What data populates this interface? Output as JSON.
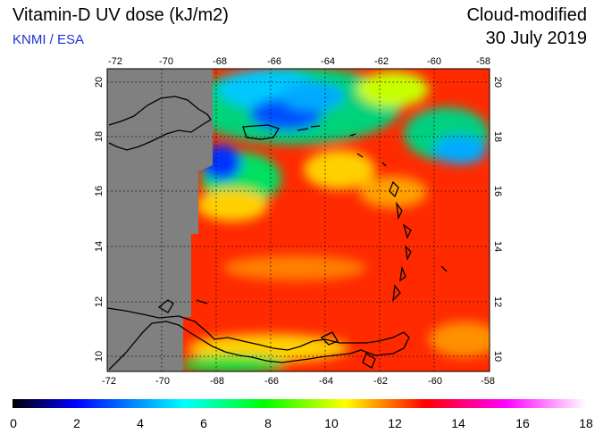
{
  "header": {
    "title": "Vitamin-D UV dose (kJ/m2)",
    "organization": "KNMI / ESA",
    "mode": "Cloud-modified",
    "date": "30 July 2019"
  },
  "map": {
    "lon_ticks": [
      "-72",
      "-70",
      "-68",
      "-66",
      "-64",
      "-62",
      "-60",
      "-58"
    ],
    "lat_ticks": [
      "10",
      "12",
      "14",
      "16",
      "18",
      "20"
    ],
    "lon_range": [
      -72,
      -58
    ],
    "lat_range": [
      9.5,
      20.5
    ],
    "no_data_color": "#808080",
    "coastline_color": "#000000",
    "grid_style": "dotted"
  },
  "colorbar": {
    "tick_labels": [
      "0",
      "2",
      "4",
      "6",
      "8",
      "10",
      "12",
      "14",
      "16",
      "18"
    ],
    "range": [
      0,
      18
    ],
    "colors": [
      "#000000",
      "#0000ff",
      "#00ffff",
      "#00ff00",
      "#ffff00",
      "#ff0000",
      "#ff00ff",
      "#ffffff"
    ]
  }
}
